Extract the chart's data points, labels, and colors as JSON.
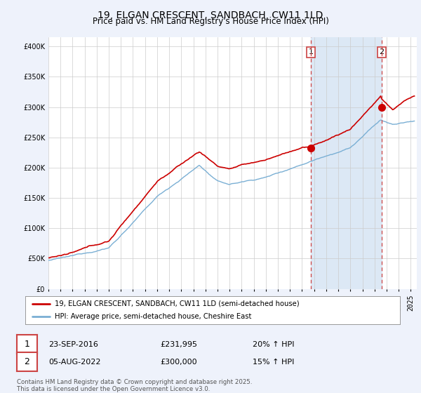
{
  "title": "19, ELGAN CRESCENT, SANDBACH, CW11 1LD",
  "subtitle": "Price paid vs. HM Land Registry's House Price Index (HPI)",
  "ylabel_ticks": [
    "£0",
    "£50K",
    "£100K",
    "£150K",
    "£200K",
    "£250K",
    "£300K",
    "£350K",
    "£400K"
  ],
  "ytick_values": [
    0,
    50000,
    100000,
    150000,
    200000,
    250000,
    300000,
    350000,
    400000
  ],
  "ylim": [
    0,
    415000
  ],
  "xlim_start": 1995.0,
  "xlim_end": 2025.5,
  "red_line_color": "#cc0000",
  "blue_line_color": "#7aafd4",
  "dashed_line_color": "#cc4444",
  "span_color": "#dce8f5",
  "marker1_date": 2016.73,
  "marker1_value": 231995,
  "marker1_label": "1",
  "marker2_date": 2022.59,
  "marker2_value": 300000,
  "marker2_label": "2",
  "legend_label1": "19, ELGAN CRESCENT, SANDBACH, CW11 1LD (semi-detached house)",
  "legend_label2": "HPI: Average price, semi-detached house, Cheshire East",
  "footer": "Contains HM Land Registry data © Crown copyright and database right 2025.\nThis data is licensed under the Open Government Licence v3.0.",
  "background_color": "#eef2fb",
  "plot_bg_color": "#ffffff",
  "grid_color": "#cccccc",
  "title_fontsize": 10,
  "subtitle_fontsize": 8.5,
  "tick_fontsize": 7
}
